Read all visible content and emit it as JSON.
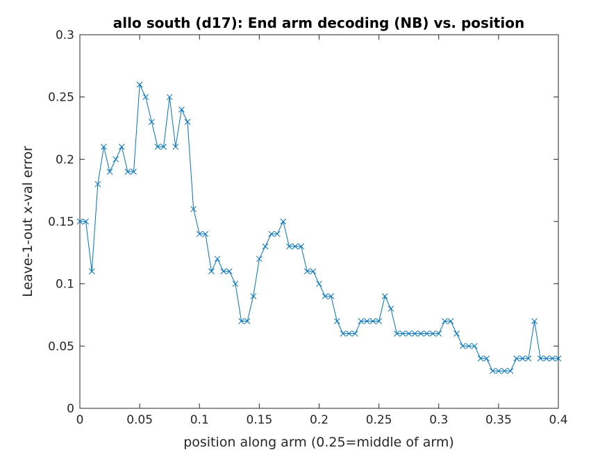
{
  "chart_data": {
    "type": "line",
    "title": "allo south (d17): End arm decoding (NB) vs. position",
    "xlabel": "position along arm (0.25=middle of arm)",
    "ylabel": "Leave-1-out x-val error",
    "xlim": [
      0,
      0.4
    ],
    "ylim": [
      0,
      0.3
    ],
    "xticks": [
      0,
      0.05,
      0.1,
      0.15,
      0.2,
      0.25,
      0.3,
      0.35,
      0.4
    ],
    "xtick_labels": [
      "0",
      "0.05",
      "0.1",
      "0.15",
      "0.2",
      "0.25",
      "0.3",
      "0.35",
      "0.4"
    ],
    "yticks": [
      0,
      0.05,
      0.1,
      0.15,
      0.2,
      0.25,
      0.3
    ],
    "ytick_labels": [
      "0",
      "0.05",
      "0.1",
      "0.15",
      "0.2",
      "0.25",
      "0.3"
    ],
    "grid": false,
    "marker": "x",
    "color": "#0072BD",
    "x": [
      0,
      0.005,
      0.01,
      0.015,
      0.02,
      0.025,
      0.03,
      0.035,
      0.04,
      0.045,
      0.05,
      0.055,
      0.06,
      0.065,
      0.07,
      0.075,
      0.08,
      0.085,
      0.09,
      0.095,
      0.1,
      0.105,
      0.11,
      0.115,
      0.12,
      0.125,
      0.13,
      0.135,
      0.14,
      0.145,
      0.15,
      0.155,
      0.16,
      0.165,
      0.17,
      0.175,
      0.18,
      0.185,
      0.19,
      0.195,
      0.2,
      0.205,
      0.21,
      0.215,
      0.22,
      0.225,
      0.23,
      0.235,
      0.24,
      0.245,
      0.25,
      0.255,
      0.26,
      0.265,
      0.27,
      0.275,
      0.28,
      0.285,
      0.29,
      0.295,
      0.3,
      0.305,
      0.31,
      0.315,
      0.32,
      0.325,
      0.33,
      0.335,
      0.34,
      0.345,
      0.35,
      0.355,
      0.36,
      0.365,
      0.37,
      0.375,
      0.38,
      0.385,
      0.39,
      0.395,
      0.4
    ],
    "y": [
      0.15,
      0.15,
      0.11,
      0.18,
      0.21,
      0.19,
      0.2,
      0.21,
      0.19,
      0.19,
      0.26,
      0.25,
      0.23,
      0.21,
      0.21,
      0.25,
      0.21,
      0.24,
      0.23,
      0.16,
      0.14,
      0.14,
      0.11,
      0.12,
      0.11,
      0.11,
      0.1,
      0.07,
      0.07,
      0.09,
      0.12,
      0.13,
      0.14,
      0.14,
      0.15,
      0.13,
      0.13,
      0.13,
      0.11,
      0.11,
      0.1,
      0.09,
      0.09,
      0.07,
      0.06,
      0.06,
      0.06,
      0.07,
      0.07,
      0.07,
      0.07,
      0.09,
      0.08,
      0.06,
      0.06,
      0.06,
      0.06,
      0.06,
      0.06,
      0.06,
      0.06,
      0.07,
      0.07,
      0.06,
      0.05,
      0.05,
      0.05,
      0.04,
      0.04,
      0.03,
      0.03,
      0.03,
      0.03,
      0.04,
      0.04,
      0.04,
      0.07,
      0.04,
      0.04,
      0.04,
      0.04
    ]
  }
}
